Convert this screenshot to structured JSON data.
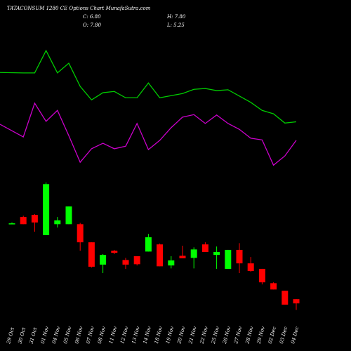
{
  "chart_data": {
    "type": "candlestick",
    "title": "TATACONSUM 1280 CE Options Chart MunafaSutra.com",
    "info": [
      "C: 6.80",
      "H: 7.80",
      "O: 7.80",
      "L: 5.25"
    ],
    "categories": [
      "29 Oct",
      "30 Oct",
      "31 Oct",
      "01 Nov",
      "04 Nov",
      "05 Nov",
      "06 Nov",
      "07 Nov",
      "08 Nov",
      "11 Nov",
      "12 Nov",
      "13 Nov",
      "14 Nov",
      "18 Nov",
      "19 Nov",
      "20 Nov",
      "21 Nov",
      "22 Nov",
      "25 Nov",
      "26 Nov",
      "27 Nov",
      "28 Nov",
      "29 Nov",
      "02 Dec",
      "03 Dec",
      "04 Dec"
    ],
    "open": [
      25.8,
      27.3,
      27.8,
      23,
      25.6,
      25.6,
      25.6,
      21.3,
      16,
      19.3,
      17.1,
      18,
      19.1,
      20.8,
      15.8,
      18.1,
      17.6,
      20.8,
      18.3,
      15,
      19.5,
      16.3,
      15,
      11.6,
      9.8,
      7.8
    ],
    "high": [
      26,
      27.6,
      28,
      35.5,
      27.3,
      29.8,
      25.9,
      21.3,
      18.5,
      19.5,
      17.6,
      18,
      23.3,
      21,
      18,
      20.5,
      20.1,
      21.3,
      20.3,
      19.5,
      21.1,
      17.8,
      15,
      11.8,
      9.8,
      7.8
    ],
    "low": [
      25.6,
      25.6,
      23.8,
      23,
      24.8,
      25.6,
      19.3,
      15.3,
      14,
      18.5,
      15,
      15.8,
      19.1,
      15.6,
      15.1,
      17.5,
      15.1,
      19,
      15,
      15,
      14,
      14.3,
      11.3,
      10.1,
      6.5,
      5.25
    ],
    "close": [
      25.8,
      25.6,
      26,
      35.1,
      26.5,
      29.8,
      21.3,
      15.5,
      18.3,
      18.8,
      16,
      16.1,
      22.5,
      15.6,
      17,
      17.5,
      19.6,
      19,
      19,
      19.5,
      16.3,
      14.5,
      11.8,
      10.1,
      6.5,
      6.8
    ],
    "up_color": "#00ff00",
    "down_color": "#ff0000",
    "series": [
      {
        "color": "#00cc00",
        "values": [
          61.6,
          61.5,
          61.5,
          66.8,
          61.5,
          63.8,
          58.3,
          55.1,
          56.8,
          57.1,
          55.6,
          55.6,
          59.1,
          55.6,
          56.1,
          56.6,
          57.6,
          57.8,
          57.3,
          57.5,
          56,
          54.5,
          52.6,
          51.8,
          49.6,
          49.9
        ]
      },
      {
        "color": "#cc00cc",
        "values": [
          49.3,
          46.3,
          54.3,
          50,
          52.6,
          46.6,
          40.3,
          43.5,
          44.8,
          43.5,
          44.1,
          49.5,
          43.3,
          45.5,
          48.5,
          51,
          51.6,
          49.5,
          51.5,
          49.5,
          48.1,
          46,
          45.6,
          39.6,
          41.8,
          45.5
        ]
      }
    ],
    "ylim": [
      -4.5,
      78.8
    ]
  }
}
